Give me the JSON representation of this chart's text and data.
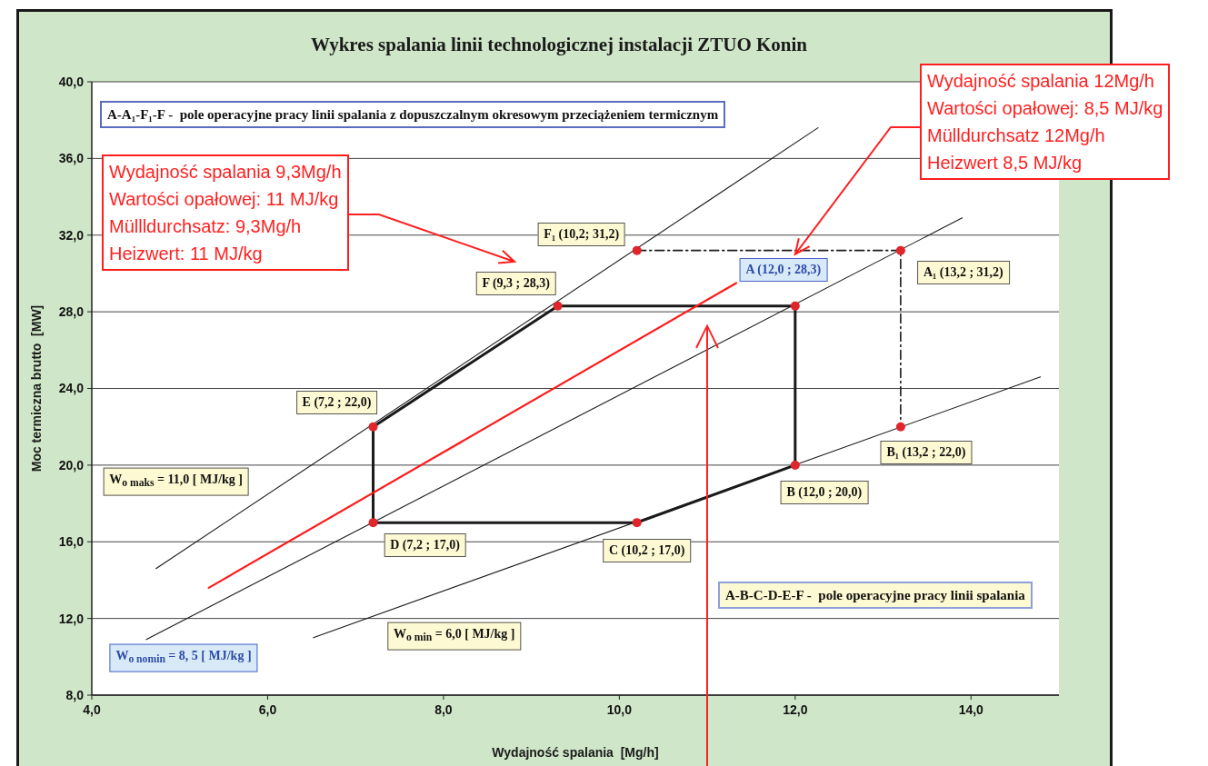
{
  "chart_data": {
    "type": "line",
    "title": "Wykres spalania linii technologicznej instalacji ZTUO Konin",
    "xlabel": "Wydajność spalania  [Mg/h]",
    "ylabel": "Moc termiczna brutto  [MW]",
    "xlim": [
      4,
      15
    ],
    "xticks": [
      {
        "value": 4,
        "label": "4,0"
      },
      {
        "value": 6,
        "label": "6,0"
      },
      {
        "value": 8,
        "label": "8,0"
      },
      {
        "value": 10,
        "label": "10,0"
      },
      {
        "value": 12,
        "label": "12,0"
      },
      {
        "value": 14,
        "label": "14,0"
      }
    ],
    "ylim": [
      8,
      40
    ],
    "yticks": [
      {
        "value": 8,
        "label": "8,0"
      },
      {
        "value": 12,
        "label": "12,0"
      },
      {
        "value": 16,
        "label": "16,0"
      },
      {
        "value": 20,
        "label": "20,0"
      },
      {
        "value": 24,
        "label": "24,0"
      },
      {
        "value": 28,
        "label": "28,0"
      },
      {
        "value": 32,
        "label": "32,0"
      },
      {
        "value": 36,
        "label": "36,0"
      },
      {
        "value": 40,
        "label": "40,0"
      }
    ],
    "grid": "y",
    "series": [
      {
        "name": "W$_{o maks}$ = 11,0 [ MJ/kg ]",
        "color": "#1a1a1a",
        "x": [
          4.73,
          12.26
        ],
        "values": [
          14.6,
          37.6
        ],
        "marker": "none"
      },
      {
        "name": "W$_{o nomin}$ = 8, 5 [ MJ/kg ]",
        "color": "#1a1a1a",
        "x": [
          4.62,
          13.9
        ],
        "values": [
          10.9,
          32.9
        ],
        "marker": "none"
      },
      {
        "name": "W$_{o min}$ = 6,0 [ MJ/kg ]",
        "color": "#1a1a1a",
        "x": [
          6.52,
          14.79
        ],
        "values": [
          11.0,
          24.6
        ],
        "marker": "none"
      },
      {
        "color": "#1a1a1a",
        "x": [
          7.2,
          7.2,
          9.3,
          12,
          12
        ],
        "values": [
          17,
          22,
          28.3,
          28.3,
          20
        ],
        "marker": "none"
      },
      {
        "color": "#1a1a1a",
        "x": [
          7.2,
          10.2,
          12
        ],
        "values": [
          17,
          17,
          20
        ],
        "marker": "none"
      },
      {
        "color": "#1a1a1a",
        "x": [
          10.2,
          13.2,
          13.2
        ],
        "values": [
          31.2,
          31.2,
          22
        ],
        "marker": "none",
        "line_style": "dashed"
      },
      {
        "color": "#ff1a1a",
        "x": [
          5.33,
          11.33
        ],
        "values": [
          13.6,
          29.5
        ],
        "marker": "none"
      },
      {
        "type": "scatter",
        "color": "#e0262b",
        "x": [
          12,
          12,
          10.2,
          7.2,
          7.2,
          9.3,
          13.2,
          13.2,
          10.2
        ],
        "values": [
          28.3,
          20,
          17,
          17,
          22,
          28.3,
          31.2,
          22,
          31.2
        ],
        "value_labels": [
          "A (12,0 ; 28,3)",
          "B (12,0 ; 20,0)",
          "C (10,2 ; 17,0)",
          "D (7,2 ; 17,0)",
          "E (7,2 ; 22,0)",
          "F (9,3 ; 28,3)",
          "A₁ (13,2 ; 31,2)",
          "B₁ (13,2 ; 22,0)",
          "F₁ (10,2; 31,2)"
        ],
        "marker": "circle"
      }
    ],
    "annotations": [
      "Wydajność spalania 9,3Mg/h\nWartości opałowej: 11 MJ/kg\nMüllldurchsatz: 9,3Mg/h\nHeizwert: 11 MJ/kg",
      {
        "text": "Wydajność spalania 12Mg/h\nWartości opałowej: 8,5 MJ/kg\nMülldurchsatz 12Mg/h\nHeizwert 8,5 MJ/kg",
        "x": 12.0,
        "y": 31.0
      },
      "A-A₁-F₁-F -  pole operacyjne pracy linii spalania z dopuszczalnym okresowym przeciążeniem termicznym",
      "A-B-C-D-E-F -  pole operacyjne pracy linii spalania"
    ]
  }
}
